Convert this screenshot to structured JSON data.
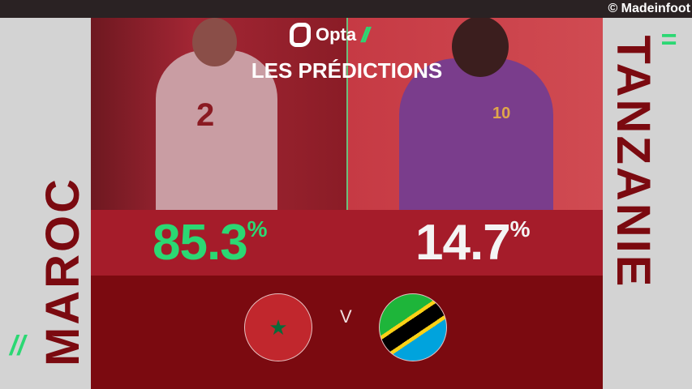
{
  "credit": "© Madeinfoot",
  "brand": {
    "name": "Opta",
    "accent": "#2bd873"
  },
  "title": "LES PRÉDICTIONS",
  "home": {
    "team": "MAROC",
    "probability": "85.3",
    "unit": "%",
    "color": "#2bd873",
    "flag": "morocco-flag",
    "shirt_number": "2"
  },
  "away": {
    "team": "TANZANIE",
    "probability": "14.7",
    "unit": "%",
    "color": "#f4f4f4",
    "flag": "tanzania-flag",
    "shirt_number": "10"
  },
  "versus": "V",
  "colors": {
    "band": "#a51c2a",
    "bottom": "#7b0a10",
    "side": "#d3d3d3"
  }
}
